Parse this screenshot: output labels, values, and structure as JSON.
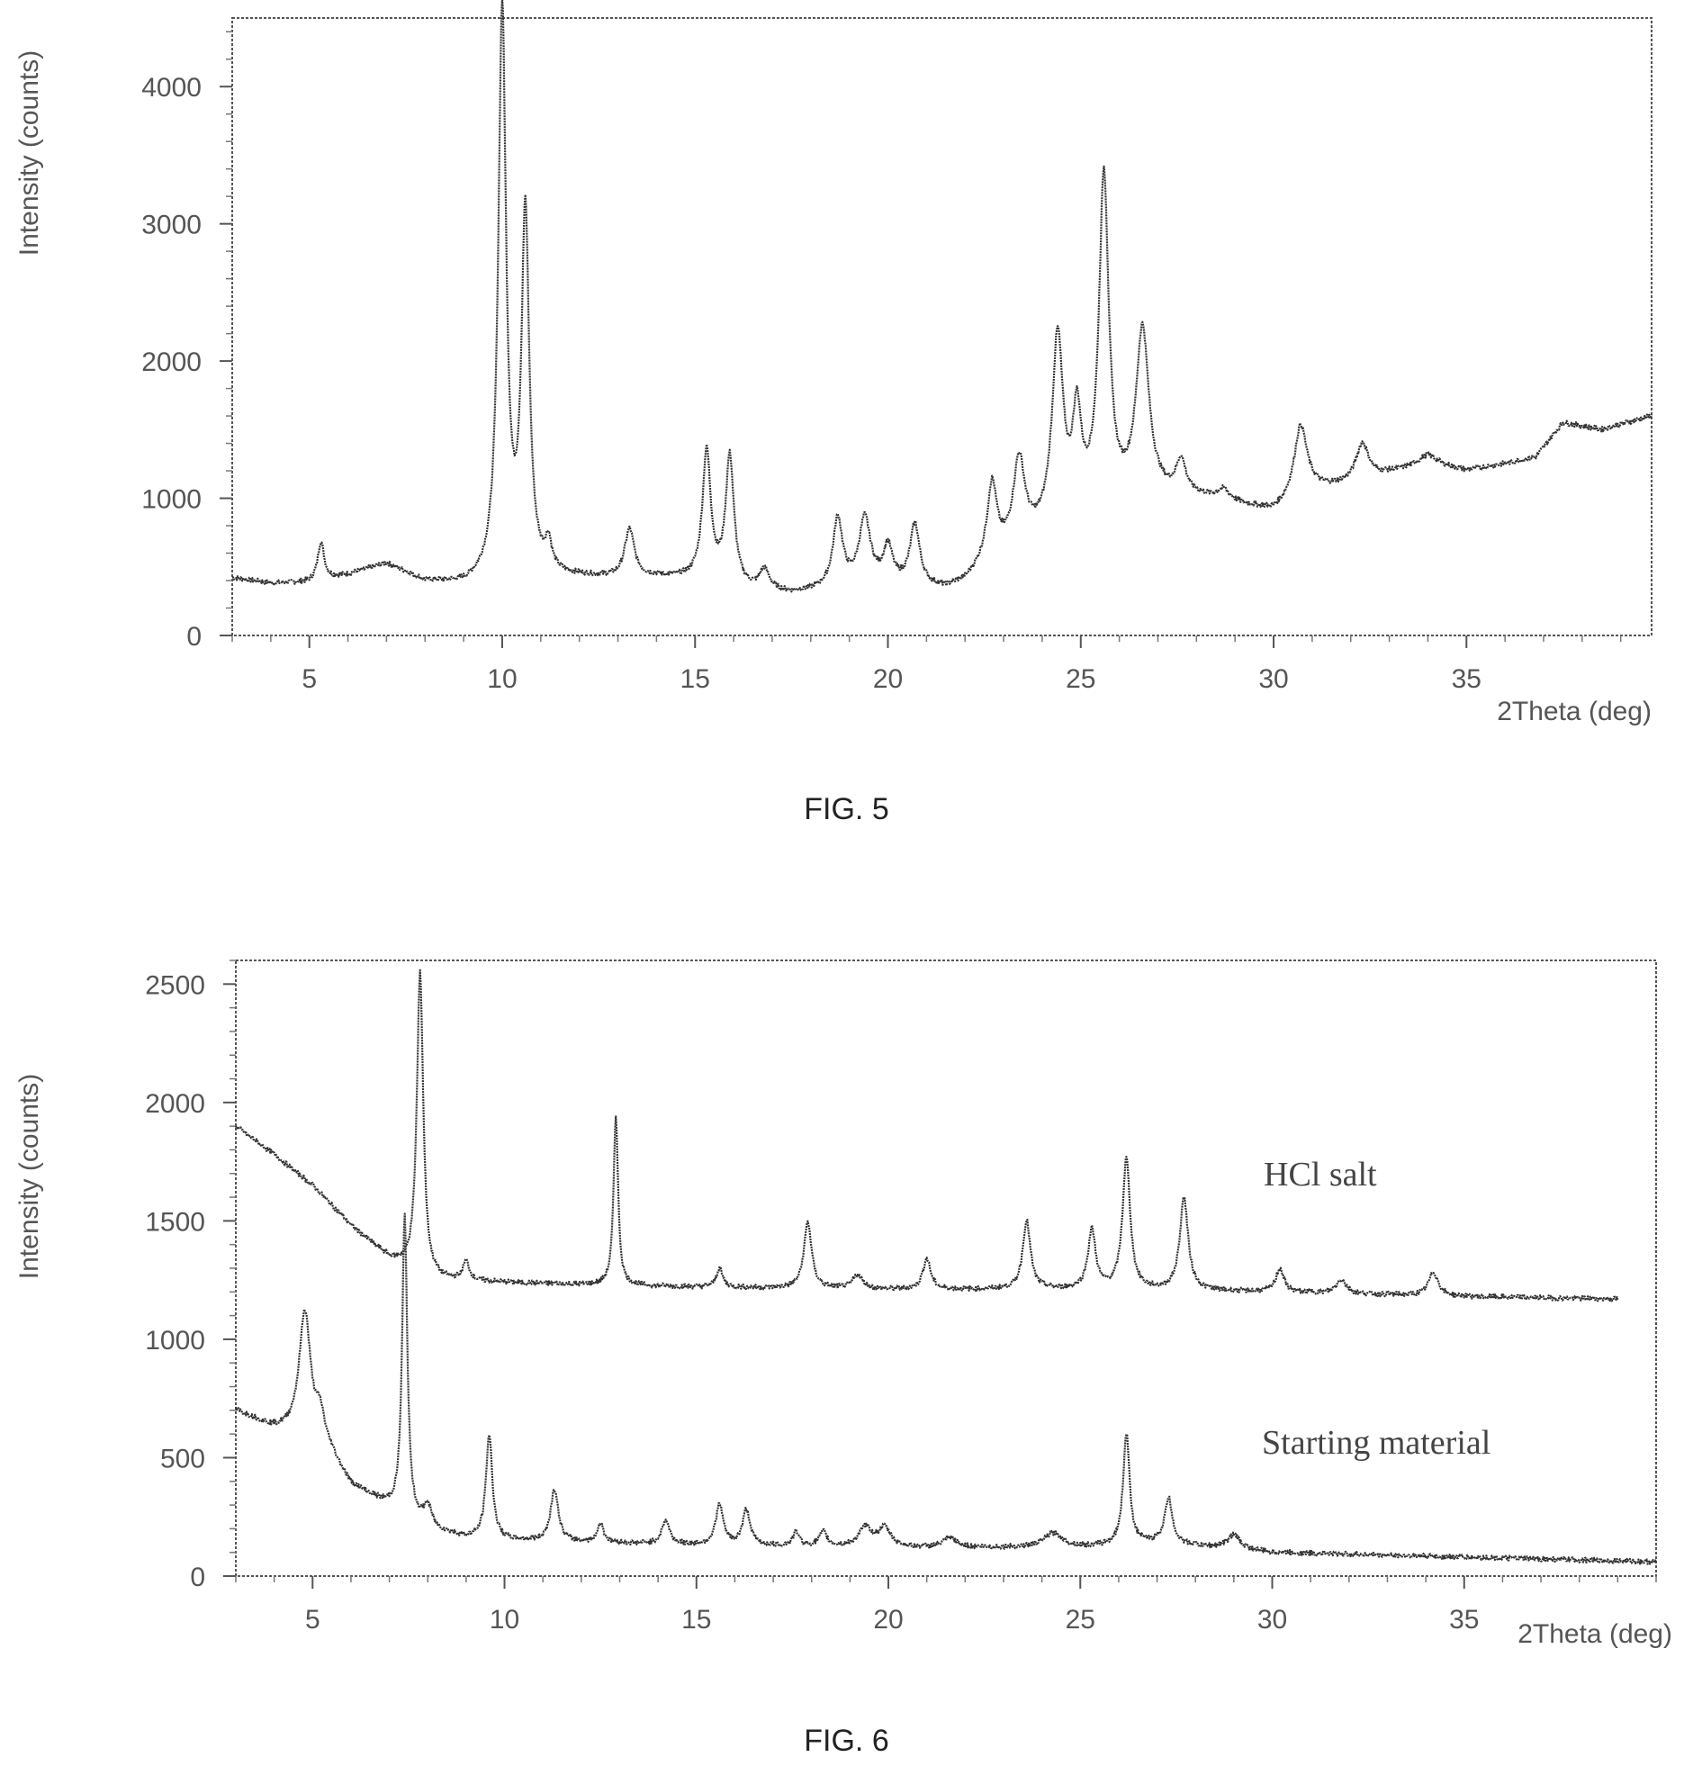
{
  "chart_data": [
    {
      "type": "line",
      "caption": "FIG. 5",
      "xlabel": "2Theta (deg)",
      "ylabel": "Intensity (counts)",
      "xlim": [
        3,
        39.8
      ],
      "ylim": [
        0,
        4500
      ],
      "xticks": [
        5,
        10,
        15,
        20,
        25,
        30,
        35
      ],
      "yticks": [
        0,
        1000,
        2000,
        3000,
        4000
      ],
      "color": "#333333",
      "series": [
        {
          "baseline": [
            [
              3,
              420
            ],
            [
              4,
              380
            ],
            [
              5,
              385
            ],
            [
              6,
              440
            ],
            [
              7,
              520
            ],
            [
              8,
              390
            ],
            [
              9,
              360
            ],
            [
              9.5,
              380
            ],
            [
              11,
              420
            ],
            [
              12,
              420
            ],
            [
              13,
              410
            ],
            [
              14,
              420
            ],
            [
              15,
              400
            ],
            [
              16.5,
              320
            ],
            [
              17.5,
              300
            ],
            [
              18.5,
              330
            ],
            [
              20,
              370
            ],
            [
              21,
              340
            ],
            [
              21.5,
              330
            ],
            [
              22,
              380
            ],
            [
              22.5,
              500
            ],
            [
              23.5,
              650
            ],
            [
              24.5,
              800
            ],
            [
              25,
              900
            ],
            [
              26,
              950
            ],
            [
              27,
              1000
            ],
            [
              28,
              1000
            ],
            [
              29,
              950
            ],
            [
              30,
              900
            ],
            [
              31,
              1050
            ],
            [
              32,
              1100
            ],
            [
              33,
              1180
            ],
            [
              34,
              1250
            ],
            [
              35,
              1200
            ],
            [
              36,
              1250
            ],
            [
              36.8,
              1300
            ],
            [
              37.5,
              1550
            ],
            [
              38.5,
              1500
            ],
            [
              39.8,
              1600
            ]
          ],
          "peaks": [
            [
              5.3,
              280,
              0.1
            ],
            [
              10.0,
              4150,
              0.12
            ],
            [
              10.6,
              2620,
              0.12
            ],
            [
              11.2,
              200,
              0.1
            ],
            [
              13.3,
              350,
              0.15
            ],
            [
              15.3,
              940,
              0.13
            ],
            [
              15.9,
              930,
              0.13
            ],
            [
              16.8,
              150,
              0.15
            ],
            [
              18.7,
              500,
              0.15
            ],
            [
              19.4,
              480,
              0.18
            ],
            [
              20.0,
              250,
              0.14
            ],
            [
              20.7,
              440,
              0.15
            ],
            [
              22.7,
              550,
              0.15
            ],
            [
              23.4,
              620,
              0.18
            ],
            [
              24.4,
              1350,
              0.17
            ],
            [
              24.9,
              650,
              0.13
            ],
            [
              25.6,
              2380,
              0.15
            ],
            [
              26.6,
              1220,
              0.2
            ],
            [
              27.6,
              240,
              0.15
            ],
            [
              28.7,
              80,
              0.2
            ],
            [
              30.7,
              520,
              0.2
            ],
            [
              32.3,
              270,
              0.2
            ],
            [
              34.0,
              60,
              0.3
            ]
          ]
        }
      ]
    },
    {
      "type": "line",
      "caption": "FIG. 6",
      "xlabel": "2Theta (deg)",
      "ylabel": "Intensity (counts)",
      "xlim": [
        3,
        40
      ],
      "ylim": [
        0,
        2600
      ],
      "xticks": [
        5,
        10,
        15,
        20,
        25,
        30,
        35
      ],
      "yticks": [
        0,
        500,
        1000,
        1500,
        2000,
        2500
      ],
      "color": "#333333",
      "series": [
        {
          "name": "HCl salt",
          "xrange": [
            3,
            39
          ],
          "baseline": [
            [
              3,
              1900
            ],
            [
              4,
              1780
            ],
            [
              5,
              1650
            ],
            [
              6,
              1480
            ],
            [
              7,
              1340
            ],
            [
              8,
              1250
            ],
            [
              10,
              1240
            ],
            [
              12,
              1230
            ],
            [
              15,
              1220
            ],
            [
              20,
              1210
            ],
            [
              25,
              1210
            ],
            [
              30,
              1200
            ],
            [
              35,
              1180
            ],
            [
              39,
              1170
            ]
          ],
          "peaks": [
            [
              7.8,
              1280,
              0.1
            ],
            [
              9.0,
              80,
              0.1
            ],
            [
              12.9,
              720,
              0.07
            ],
            [
              15.6,
              80,
              0.1
            ],
            [
              17.9,
              280,
              0.12
            ],
            [
              19.2,
              60,
              0.15
            ],
            [
              21.0,
              130,
              0.12
            ],
            [
              23.6,
              290,
              0.12
            ],
            [
              25.3,
              250,
              0.12
            ],
            [
              26.2,
              550,
              0.12
            ],
            [
              27.7,
              390,
              0.13
            ],
            [
              30.2,
              100,
              0.12
            ],
            [
              31.8,
              60,
              0.15
            ],
            [
              34.2,
              100,
              0.15
            ]
          ]
        },
        {
          "name": "Starting material",
          "xrange": [
            3,
            40
          ],
          "baseline": [
            [
              3,
              700
            ],
            [
              4,
              620
            ],
            [
              4.5,
              600
            ],
            [
              5.5,
              500
            ],
            [
              6,
              380
            ],
            [
              7,
              290
            ],
            [
              8,
              200
            ],
            [
              9,
              160
            ],
            [
              10,
              150
            ],
            [
              15,
              130
            ],
            [
              20,
              120
            ],
            [
              25,
              120
            ],
            [
              27,
              140
            ],
            [
              30,
              100
            ],
            [
              35,
              80
            ],
            [
              40,
              60
            ]
          ],
          "peaks": [
            [
              4.8,
              540,
              0.18
            ],
            [
              5.2,
              130,
              0.15
            ],
            [
              7.4,
              1260,
              0.08
            ],
            [
              8.0,
              90,
              0.12
            ],
            [
              9.6,
              440,
              0.1
            ],
            [
              11.3,
              220,
              0.12
            ],
            [
              12.5,
              80,
              0.1
            ],
            [
              14.2,
              100,
              0.12
            ],
            [
              15.6,
              170,
              0.12
            ],
            [
              16.3,
              150,
              0.12
            ],
            [
              17.6,
              60,
              0.1
            ],
            [
              18.3,
              60,
              0.12
            ],
            [
              19.4,
              80,
              0.2
            ],
            [
              19.9,
              80,
              0.2
            ],
            [
              21.6,
              40,
              0.2
            ],
            [
              24.3,
              60,
              0.3
            ],
            [
              26.2,
              470,
              0.1
            ],
            [
              27.3,
              190,
              0.12
            ],
            [
              29.0,
              60,
              0.2
            ]
          ]
        }
      ]
    }
  ]
}
